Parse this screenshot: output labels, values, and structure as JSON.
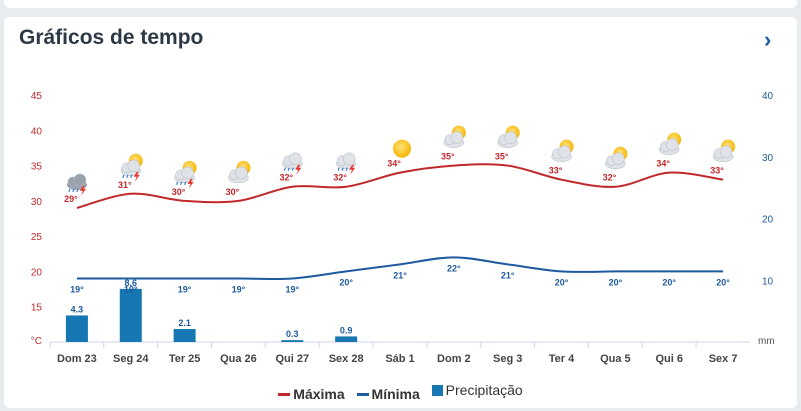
{
  "header": {
    "title": "Gráficos de tempo",
    "next_icon": "chevron-right-icon"
  },
  "legend": {
    "max_label": "Máxima",
    "min_label": "Mínima",
    "precip_label": "Precipitação"
  },
  "colors": {
    "max": "#c0292b",
    "min": "#1d5a9e",
    "precip": "#1777b3",
    "axis_left": "#c0292b",
    "axis_right": "#1d5a9e"
  },
  "chart_data": {
    "type": "line",
    "categories": [
      "Dom 23",
      "Seg 24",
      "Ter 25",
      "Qua 26",
      "Qui 27",
      "Sex 28",
      "Sáb 1",
      "Dom 2",
      "Seg 3",
      "Ter 4",
      "Qua 5",
      "Qui 6",
      "Sex 7"
    ],
    "temp_axis": {
      "ticks": [
        45,
        40,
        35,
        30,
        25,
        20,
        15
      ],
      "unit": "°C",
      "ylim": [
        10,
        45
      ]
    },
    "precip_axis": {
      "ticks": [
        40,
        30,
        20,
        10
      ],
      "unit": "mm",
      "ylim": [
        0,
        40
      ]
    },
    "series": [
      {
        "name": "Máxima",
        "values": [
          29,
          31,
          30,
          30,
          32,
          32,
          34,
          35,
          35,
          33,
          32,
          34,
          33
        ]
      },
      {
        "name": "Mínima",
        "values": [
          19,
          19,
          19,
          19,
          19,
          20,
          21,
          22,
          21,
          20,
          20,
          20,
          20
        ]
      },
      {
        "name": "Precipitação",
        "values": [
          4.3,
          8.6,
          2.1,
          0,
          0.3,
          0.9,
          0,
          0,
          0,
          0,
          0,
          0,
          0
        ],
        "labels": [
          "4.3",
          "8.6",
          "2.1",
          "",
          "0.3",
          "0.9",
          "",
          "",
          "",
          "",
          "",
          "",
          ""
        ]
      }
    ],
    "icons": [
      "rain-thunder-icon",
      "sun-cloud-thunder-icon",
      "sun-cloud-thunder-icon",
      "sun-cloud-icon",
      "cloud-thunder-icon",
      "cloud-thunder-icon",
      "sun-icon",
      "sun-cloud-icon",
      "sun-cloud-icon",
      "sun-cloud-icon",
      "sun-cloud-icon",
      "sun-cloud-icon",
      "sun-cloud-icon"
    ]
  }
}
